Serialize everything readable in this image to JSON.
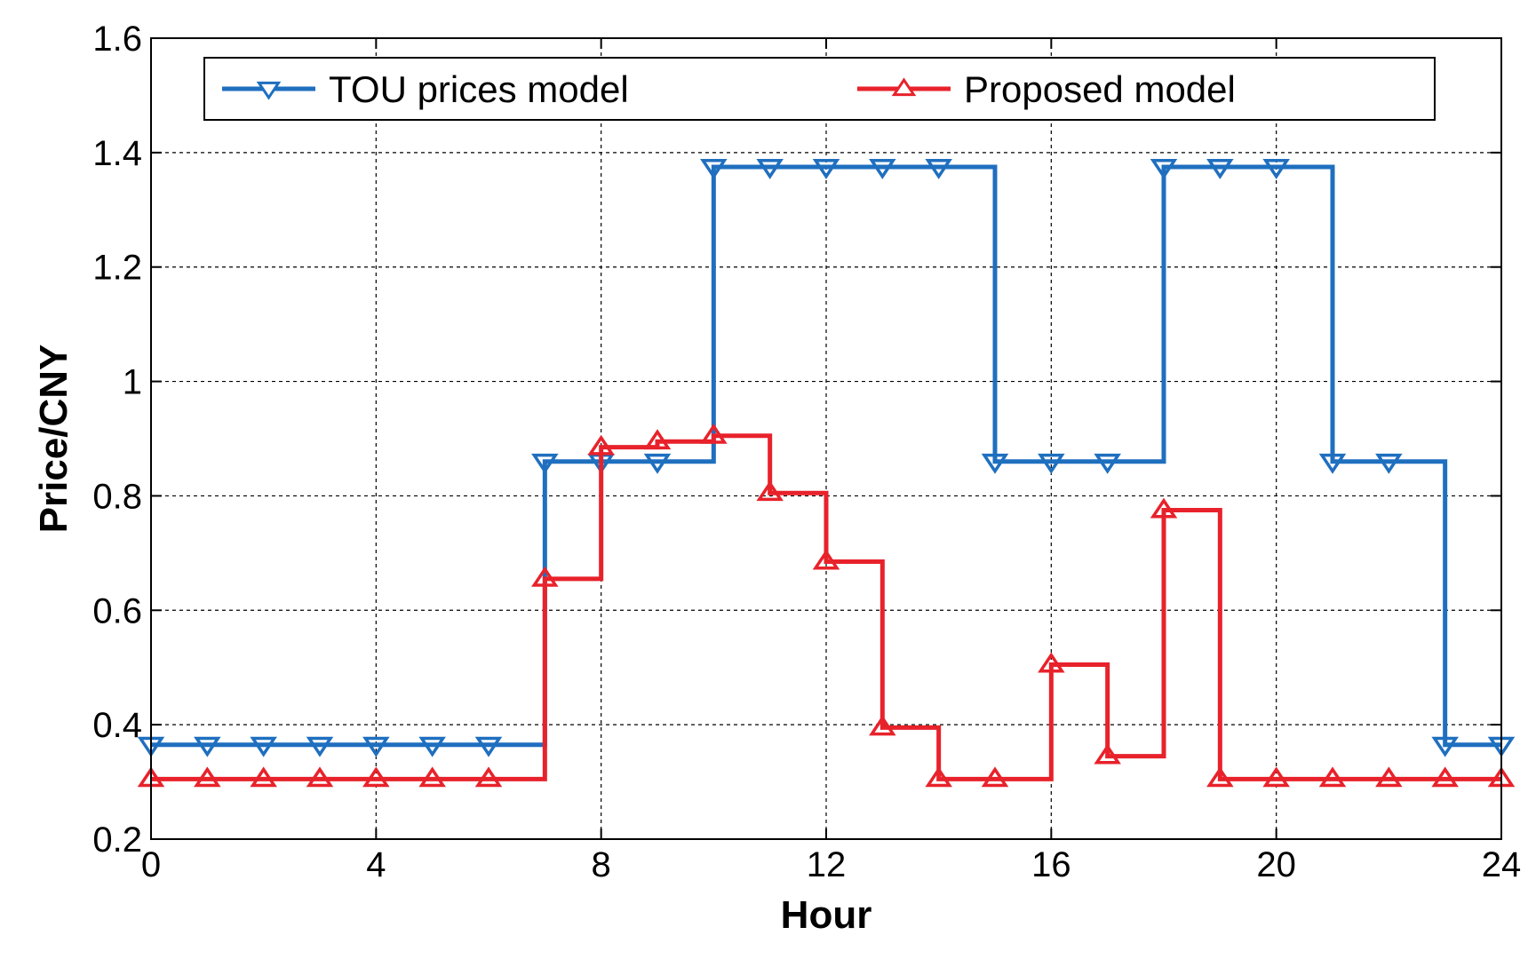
{
  "chart_data": {
    "type": "line",
    "step": "post",
    "title": "",
    "xlabel": "Hour",
    "ylabel": "Price/CNY",
    "xlim": [
      0,
      24
    ],
    "ylim": [
      0.2,
      1.6
    ],
    "xticks": [
      0,
      4,
      8,
      12,
      16,
      20,
      24
    ],
    "xtick_labels": [
      "0",
      "4",
      "8",
      "12",
      "16",
      "20",
      "24"
    ],
    "yticks": [
      0.2,
      0.4,
      0.6,
      0.8,
      1.0,
      1.2,
      1.4,
      1.6
    ],
    "ytick_labels": [
      "0.2",
      "0.4",
      "0.6",
      "0.8",
      "1",
      "1.2",
      "1.4",
      "1.6"
    ],
    "grid": true,
    "legend_position": "top",
    "x": [
      0,
      1,
      2,
      3,
      4,
      5,
      6,
      7,
      8,
      9,
      10,
      11,
      12,
      13,
      14,
      15,
      16,
      17,
      18,
      19,
      20,
      21,
      22,
      23,
      24
    ],
    "series": [
      {
        "name": "TOU prices model",
        "color": "#1f6fbf",
        "marker": "triangle-down",
        "values": [
          0.365,
          0.365,
          0.365,
          0.365,
          0.365,
          0.365,
          0.365,
          0.86,
          0.86,
          0.86,
          1.375,
          1.375,
          1.375,
          1.375,
          1.375,
          0.86,
          0.86,
          0.86,
          1.375,
          1.375,
          1.375,
          0.86,
          0.86,
          0.365,
          0.365
        ]
      },
      {
        "name": "Proposed model",
        "color": "#e8222b",
        "marker": "triangle-up",
        "values": [
          0.305,
          0.305,
          0.305,
          0.305,
          0.305,
          0.305,
          0.305,
          0.655,
          0.885,
          0.895,
          0.905,
          0.805,
          0.685,
          0.395,
          0.305,
          0.305,
          0.505,
          0.345,
          0.775,
          0.305,
          0.305,
          0.305,
          0.305,
          0.305,
          0.305
        ]
      }
    ]
  }
}
